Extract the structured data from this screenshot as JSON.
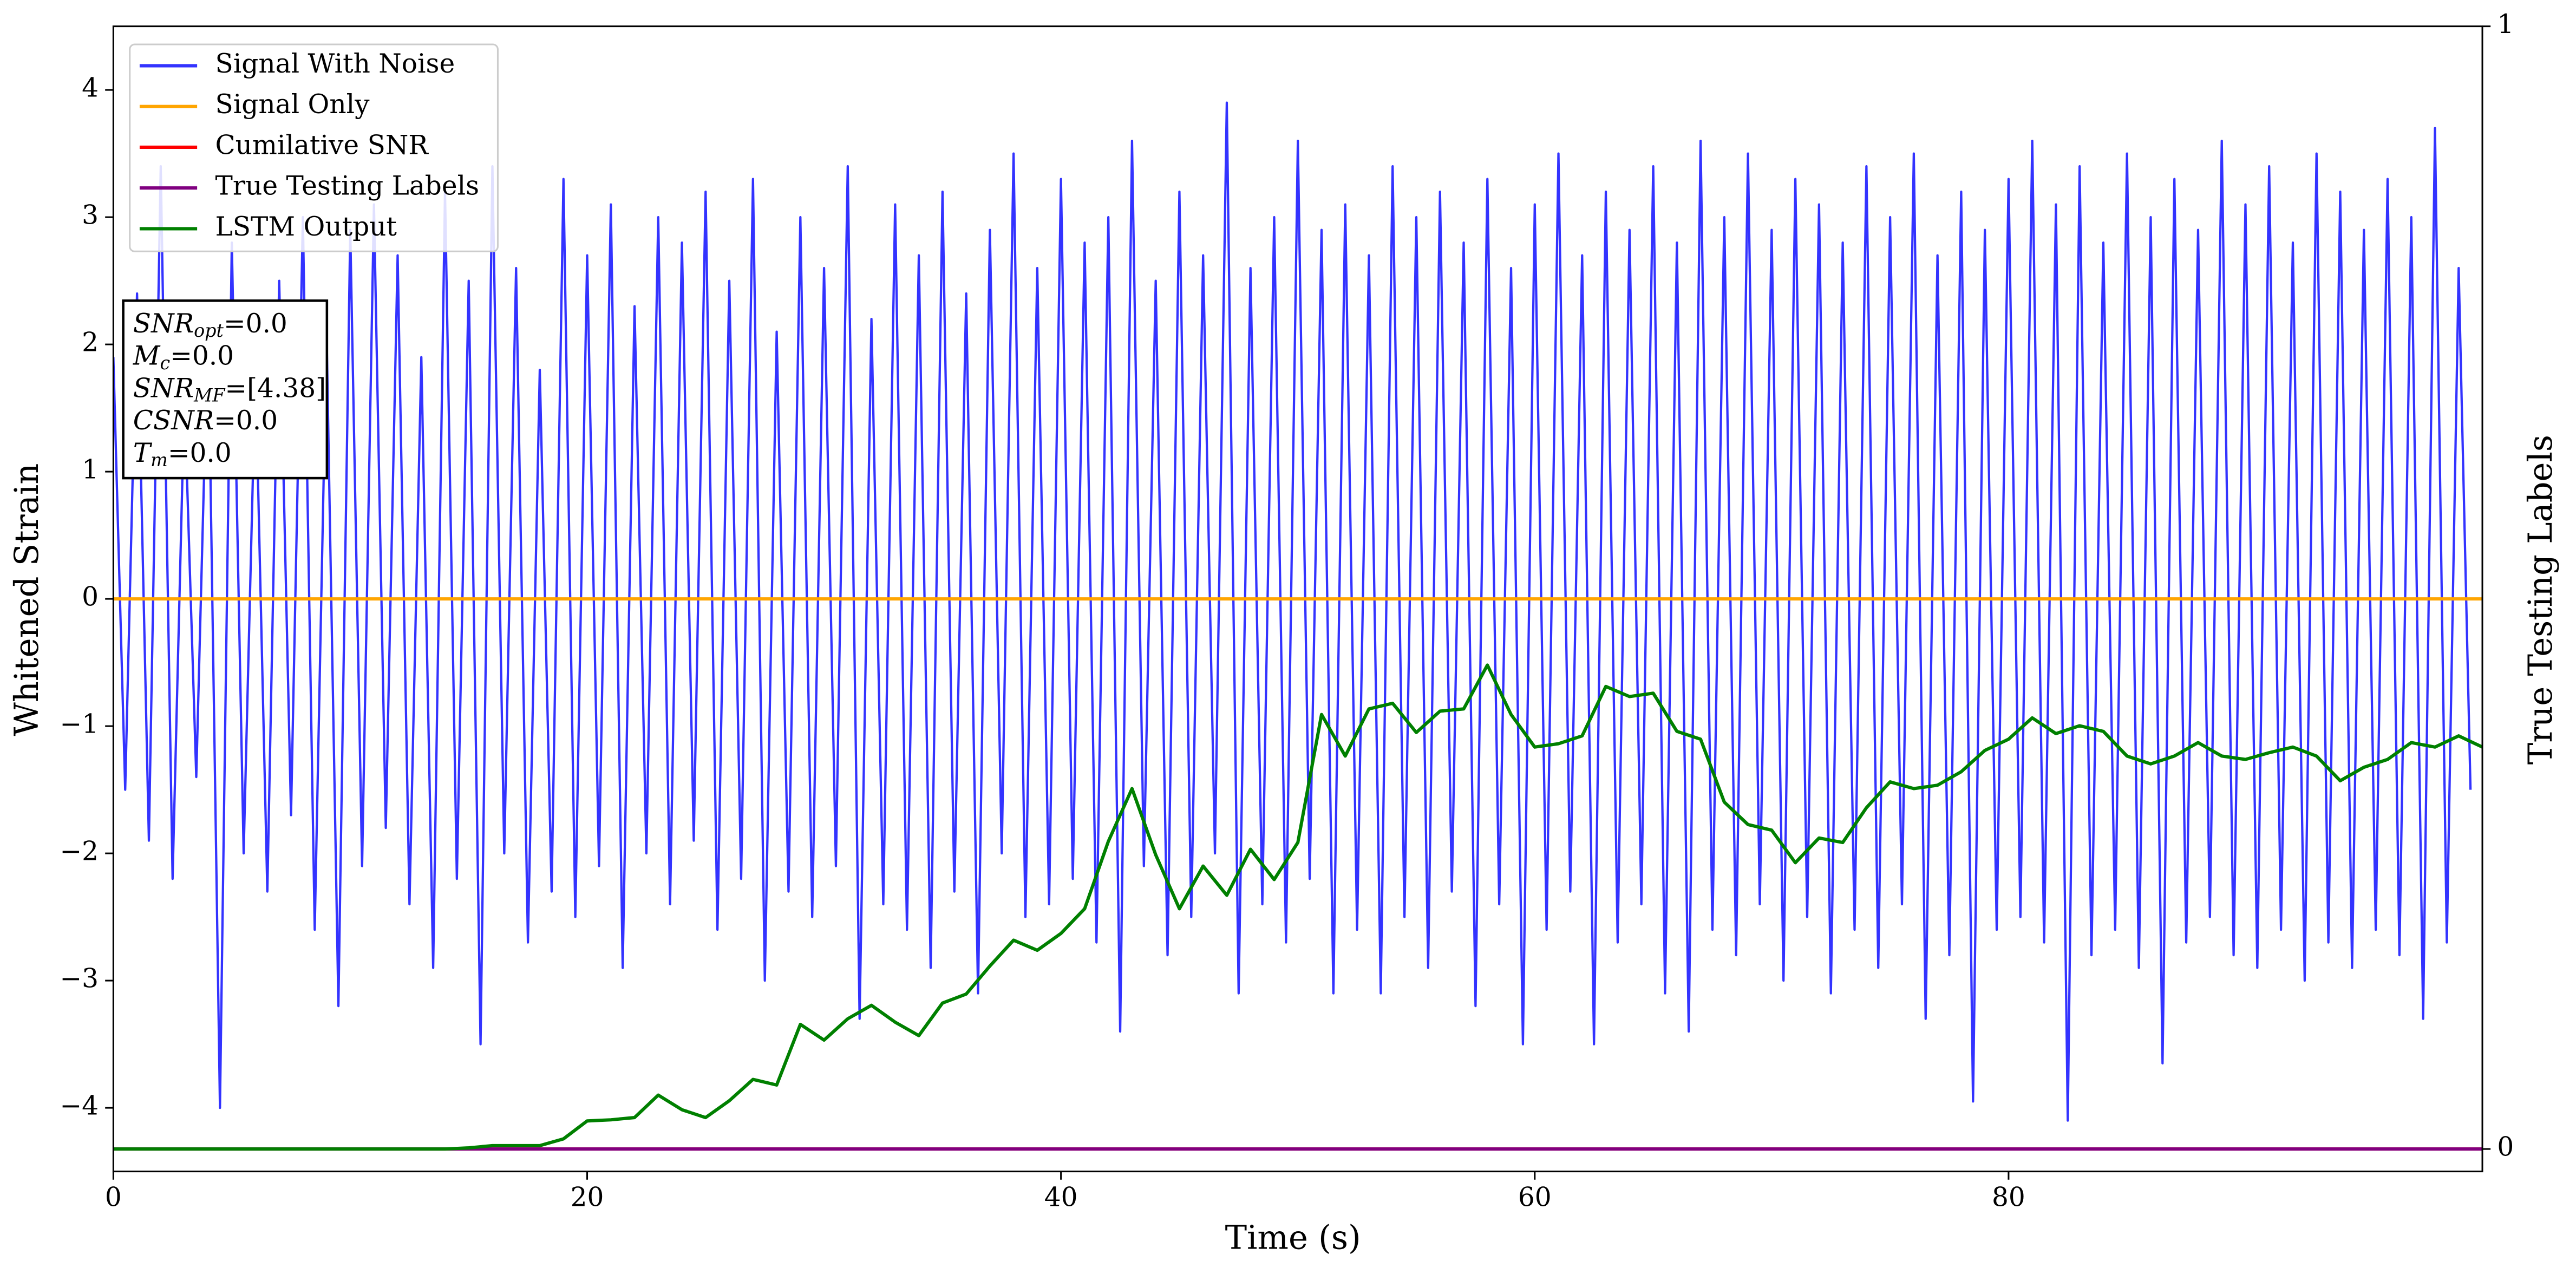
{
  "chart_data": {
    "type": "line",
    "xlabel": "Time (s)",
    "ylabel": "Whitened Strain",
    "y2label": "True Testing Labels",
    "xlim": [
      0,
      100
    ],
    "ylim": [
      -4.5,
      4.5
    ],
    "y2lim": [
      -0.02,
      1.0
    ],
    "xticks": [
      0,
      20,
      40,
      60,
      80
    ],
    "yticks": [
      {
        "value": -4,
        "label": "−4"
      },
      {
        "value": -3,
        "label": "−3"
      },
      {
        "value": -2,
        "label": "−2"
      },
      {
        "value": -1,
        "label": "−1"
      },
      0,
      1,
      2,
      3,
      4
    ],
    "y2ticks": [
      0,
      1
    ],
    "legend": "upper left",
    "annotations": [
      {
        "symbol": "SNR",
        "subscript": "opt",
        "text": "=0.0"
      },
      {
        "symbol": "M",
        "subscript": "c",
        "text": "=0.0"
      },
      {
        "symbol": "SNR",
        "subscript": "MF",
        "text": "=[4.38]"
      },
      {
        "symbol": "CSNR",
        "text": "=0.0"
      },
      {
        "symbol": "T",
        "subscript": "m",
        "text": "=0.0"
      }
    ],
    "series": [
      {
        "name": "Signal With Noise",
        "color": "#3333ff",
        "x": [
          0,
          0.5,
          1,
          1.5,
          2,
          2.5,
          3,
          3.5,
          4,
          4.5,
          5,
          5.5,
          6,
          6.5,
          7,
          7.5,
          8,
          8.5,
          9,
          9.5,
          10,
          10.5,
          11,
          11.5,
          12,
          12.5,
          13,
          13.5,
          14,
          14.5,
          15,
          15.5,
          16,
          16.5,
          17,
          17.5,
          18,
          18.5,
          19,
          19.5,
          20,
          20.5,
          21,
          21.5,
          22,
          22.5,
          23,
          23.5,
          24,
          24.5,
          25,
          25.5,
          26,
          26.5,
          27,
          27.5,
          28,
          28.5,
          29,
          29.5,
          30,
          30.5,
          31,
          31.5,
          32,
          32.5,
          33,
          33.5,
          34,
          34.5,
          35,
          35.5,
          36,
          36.5,
          37,
          37.5,
          38,
          38.5,
          39,
          39.5,
          40,
          40.5,
          41,
          41.5,
          42,
          42.5,
          43,
          43.5,
          44,
          44.5,
          45,
          45.5,
          46,
          46.5,
          47,
          47.5,
          48,
          48.5,
          49,
          49.5,
          50,
          50.5,
          51,
          51.5,
          52,
          52.5,
          53,
          53.5,
          54,
          54.5,
          55,
          55.5,
          56,
          56.5,
          57,
          57.5,
          58,
          58.5,
          59,
          59.5,
          60,
          60.5,
          61,
          61.5,
          62,
          62.5,
          63,
          63.5,
          64,
          64.5,
          65,
          65.5,
          66,
          66.5,
          67,
          67.5,
          68,
          68.5,
          69,
          69.5,
          70,
          70.5,
          71,
          71.5,
          72,
          72.5,
          73,
          73.5,
          74,
          74.5,
          75,
          75.5,
          76,
          76.5,
          77,
          77.5,
          78,
          78.5,
          79,
          79.5,
          80,
          80.5,
          81,
          81.5,
          82,
          82.5,
          83,
          83.5,
          84,
          84.5,
          85,
          85.5,
          86,
          86.5,
          87,
          87.5,
          88,
          88.5,
          89,
          89.5,
          90,
          90.5,
          91,
          91.5,
          92,
          92.5,
          93,
          93.5,
          94,
          94.5,
          95,
          95.5,
          96,
          96.5,
          97,
          97.5,
          98,
          98.5,
          99,
          99.5
        ],
        "values": [
          1.9,
          -1.5,
          2.4,
          -1.9,
          3.4,
          -2.2,
          1.6,
          -1.4,
          2.2,
          -4.0,
          2.8,
          -2.0,
          1.8,
          -2.3,
          2.5,
          -1.7,
          3.0,
          -2.6,
          2.1,
          -3.2,
          2.9,
          -2.1,
          3.1,
          -1.8,
          2.7,
          -2.4,
          1.9,
          -2.9,
          3.2,
          -2.2,
          2.5,
          -3.5,
          3.4,
          -2.0,
          2.6,
          -2.7,
          1.8,
          -2.3,
          3.3,
          -2.5,
          2.7,
          -2.1,
          3.1,
          -2.9,
          2.3,
          -2.0,
          3.0,
          -2.4,
          2.8,
          -1.9,
          3.2,
          -2.6,
          2.5,
          -2.2,
          3.3,
          -3.0,
          2.1,
          -2.3,
          3.0,
          -2.5,
          2.6,
          -2.1,
          3.4,
          -3.3,
          2.2,
          -2.4,
          3.1,
          -2.6,
          2.7,
          -2.9,
          3.2,
          -2.3,
          2.4,
          -3.1,
          2.9,
          -2.0,
          3.5,
          -2.5,
          2.6,
          -2.4,
          3.3,
          -2.2,
          2.8,
          -2.7,
          3.0,
          -3.4,
          3.6,
          -2.1,
          2.5,
          -2.8,
          3.2,
          -2.5,
          2.7,
          -2.0,
          3.9,
          -3.1,
          2.6,
          -2.4,
          3.0,
          -2.7,
          3.6,
          -2.2,
          2.9,
          -3.1,
          3.1,
          -2.6,
          2.7,
          -3.1,
          3.4,
          -2.5,
          3.0,
          -2.9,
          3.2,
          -2.3,
          2.8,
          -3.2,
          3.3,
          -2.4,
          2.6,
          -3.5,
          3.1,
          -2.6,
          3.5,
          -2.3,
          2.7,
          -3.5,
          3.2,
          -2.7,
          2.9,
          -2.4,
          3.4,
          -3.1,
          2.8,
          -3.4,
          3.6,
          -2.6,
          3.0,
          -2.8,
          3.5,
          -2.4,
          2.9,
          -3.0,
          3.3,
          -2.5,
          3.1,
          -3.1,
          2.8,
          -2.6,
          3.4,
          -2.9,
          3.0,
          -2.4,
          3.5,
          -3.3,
          2.7,
          -2.8,
          3.2,
          -3.95,
          2.9,
          -2.6,
          3.3,
          -2.5,
          3.6,
          -2.7,
          3.1,
          -4.1,
          3.4,
          -2.8,
          2.8,
          -2.6,
          3.5,
          -2.9,
          3.0,
          -3.65,
          3.3,
          -2.7,
          2.9,
          -2.5,
          3.6,
          -2.8,
          3.1,
          -2.9,
          3.4,
          -2.6,
          2.8,
          -3.0,
          3.5,
          -2.7,
          3.2,
          -2.9,
          2.9,
          -2.6,
          3.3,
          -2.8,
          3.0,
          -3.3,
          3.7,
          -2.7,
          2.6,
          -1.5
        ]
      },
      {
        "name": "Signal Only",
        "color": "#ffa500",
        "x": [
          0,
          100
        ],
        "values": [
          0,
          0
        ]
      },
      {
        "name": "Cumilative SNR",
        "color": "#ff0000",
        "axis": "y2",
        "x": [
          0,
          100
        ],
        "values": [
          0,
          0
        ]
      },
      {
        "name": "True Testing Labels",
        "color": "#800080",
        "axis": "y2",
        "x": [
          0,
          100
        ],
        "values": [
          0,
          0
        ]
      },
      {
        "name": "LSTM Output",
        "color": "#008000",
        "axis": "y2",
        "x": [
          0,
          1,
          2,
          3,
          4,
          5,
          6,
          7,
          8,
          9,
          10,
          11,
          12,
          13,
          14,
          15,
          16,
          17,
          18,
          19,
          20,
          21,
          22,
          23,
          24,
          25,
          26,
          27,
          28,
          29,
          30,
          31,
          32,
          33,
          34,
          35,
          36,
          37,
          38,
          39,
          40,
          41,
          42,
          43,
          44,
          45,
          46,
          47,
          48,
          49,
          50,
          51,
          52,
          53,
          54,
          55,
          56,
          57,
          58,
          59,
          60,
          61,
          62,
          63,
          64,
          65,
          66,
          67,
          68,
          69,
          70,
          71,
          72,
          73,
          74,
          75,
          76,
          77,
          78,
          79,
          80,
          81,
          82,
          83,
          84,
          85,
          86,
          87,
          88,
          89,
          90,
          91,
          92,
          93,
          94,
          95,
          96,
          97,
          98,
          99,
          100
        ],
        "values": [
          0,
          0,
          0,
          0,
          0,
          0,
          0,
          0,
          0,
          0,
          0,
          0,
          0,
          0,
          0,
          0.001,
          0.003,
          0.003,
          0.003,
          0.009,
          0.025,
          0.026,
          0.028,
          0.048,
          0.035,
          0.028,
          0.043,
          0.062,
          0.057,
          0.111,
          0.097,
          0.116,
          0.128,
          0.113,
          0.101,
          0.13,
          0.138,
          0.163,
          0.186,
          0.177,
          0.192,
          0.214,
          0.274,
          0.321,
          0.262,
          0.214,
          0.252,
          0.226,
          0.267,
          0.24,
          0.273,
          0.387,
          0.35,
          0.392,
          0.397,
          0.371,
          0.39,
          0.392,
          0.431,
          0.387,
          0.358,
          0.361,
          0.368,
          0.412,
          0.403,
          0.406,
          0.372,
          0.365,
          0.309,
          0.289,
          0.284,
          0.255,
          0.277,
          0.273,
          0.304,
          0.327,
          0.321,
          0.324,
          0.336,
          0.355,
          0.365,
          0.384,
          0.37,
          0.377,
          0.372,
          0.35,
          0.343,
          0.35,
          0.362,
          0.35,
          0.347,
          0.353,
          0.358,
          0.35,
          0.328,
          0.34,
          0.347,
          0.362,
          0.358,
          0.368,
          0.358
        ]
      }
    ]
  }
}
